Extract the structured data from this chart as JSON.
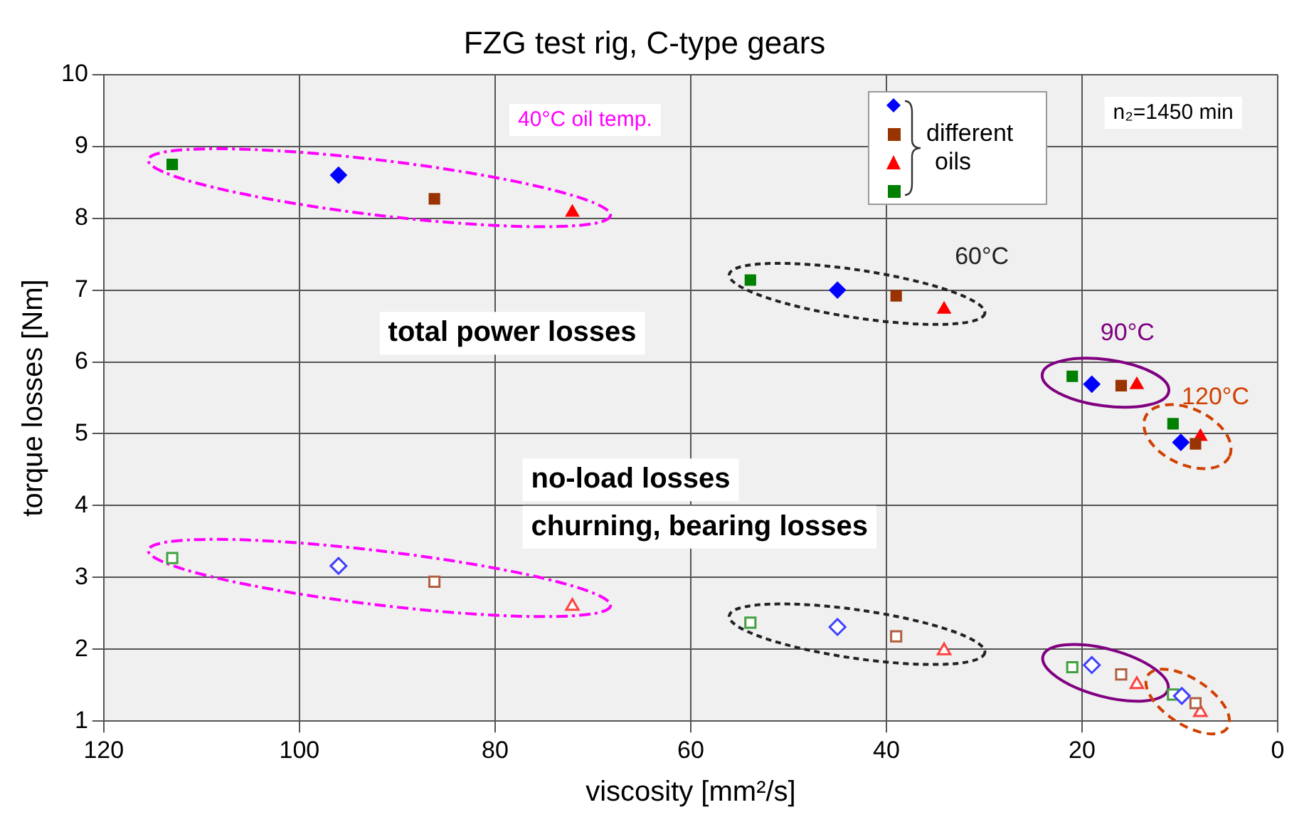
{
  "chart_data": {
    "type": "scatter",
    "title": "FZG test rig, C-type gears",
    "xlabel": "viscosity [mm²/s]",
    "ylabel": "torque losses [Nm]",
    "legend_title": "different oils",
    "grid": true,
    "xlim": [
      120,
      0
    ],
    "xticks": [
      120,
      100,
      80,
      60,
      40,
      20,
      0
    ],
    "ylim": [
      1,
      10
    ],
    "yticks": [
      1,
      2,
      3,
      4,
      5,
      6,
      7,
      8,
      9,
      10
    ],
    "series": [
      {
        "color": "#0000ff",
        "marker": "diamond",
        "x": [
          96,
          45,
          19,
          9.9
        ],
        "values": [
          8.6,
          7.0,
          5.69,
          4.88
        ]
      },
      {
        "color": "#993300",
        "marker": "square",
        "x": [
          86.2,
          39,
          16,
          8.4
        ],
        "values": [
          8.27,
          6.92,
          5.67,
          4.86
        ]
      },
      {
        "color": "#ff0000",
        "marker": "triangle",
        "x": [
          72.1,
          34.1,
          14.4,
          7.9
        ],
        "values": [
          8.08,
          6.73,
          5.68,
          4.96
        ]
      },
      {
        "color": "#008000",
        "marker": "square",
        "x": [
          113,
          53.9,
          21,
          10.7
        ],
        "values": [
          8.75,
          7.14,
          5.8,
          5.14
        ]
      },
      {
        "color": "#4040ff",
        "marker": "diamond",
        "x": [
          96,
          45,
          19,
          9.8
        ],
        "values": [
          3.16,
          2.31,
          1.78,
          1.35
        ]
      },
      {
        "color": "#b06040",
        "marker": "square",
        "x": [
          86.2,
          39,
          16,
          8.4
        ],
        "values": [
          2.94,
          2.18,
          1.65,
          1.25
        ]
      },
      {
        "color": "#ff4040",
        "marker": "triangle",
        "x": [
          72.1,
          34.1,
          14.4,
          7.9
        ],
        "values": [
          2.6,
          1.98,
          1.51,
          1.12
        ]
      },
      {
        "color": "#40a040",
        "marker": "square",
        "x": [
          113,
          53.9,
          21,
          10.7
        ],
        "values": [
          3.27,
          2.37,
          1.75,
          1.37
        ]
      }
    ],
    "annotations": [
      "40°C oil temp.",
      "60°C",
      "90°C",
      "120°C",
      "total power losses",
      "no-load losses",
      "churning, bearing losses",
      "n₂=1450 min"
    ]
  }
}
